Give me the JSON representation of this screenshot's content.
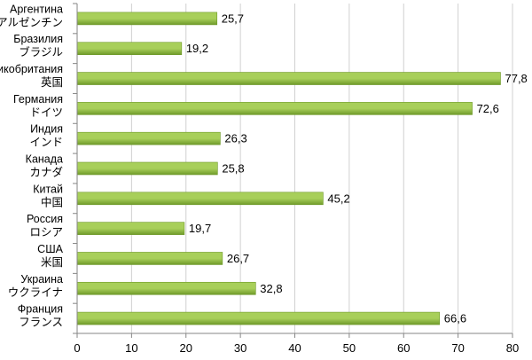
{
  "chart_data": {
    "type": "bar",
    "orientation": "horizontal",
    "categories": [
      [
        "Аргентина",
        "アルゼンチン"
      ],
      [
        "Бразилия",
        "ブラジル"
      ],
      [
        "Великобритания",
        "英国"
      ],
      [
        "Германия",
        "ドイツ"
      ],
      [
        "Индия",
        "インド"
      ],
      [
        "Канада",
        "カナダ"
      ],
      [
        "Китай",
        "中国"
      ],
      [
        "Россия",
        "ロシア"
      ],
      [
        "США",
        "米国"
      ],
      [
        "Украина",
        "ウクライナ"
      ],
      [
        "Франция",
        "フランス"
      ]
    ],
    "values": [
      25.7,
      19.2,
      77.8,
      72.6,
      26.3,
      25.8,
      45.2,
      19.7,
      26.7,
      32.8,
      66.6
    ],
    "value_labels": [
      "25,7",
      "19,2",
      "77,8",
      "72,6",
      "26,3",
      "25,8",
      "45,2",
      "19,7",
      "26,7",
      "32,8",
      "66,6"
    ],
    "xlim": [
      0,
      80
    ],
    "xticks": [
      "0",
      "10",
      "20",
      "30",
      "40",
      "50",
      "60",
      "70",
      "80"
    ],
    "grid": true,
    "colors": {
      "bar_light": "#a8cf5a",
      "bar_dark": "#6f9a2a",
      "grid": "#d0d0d0",
      "axis": "#868686"
    }
  }
}
